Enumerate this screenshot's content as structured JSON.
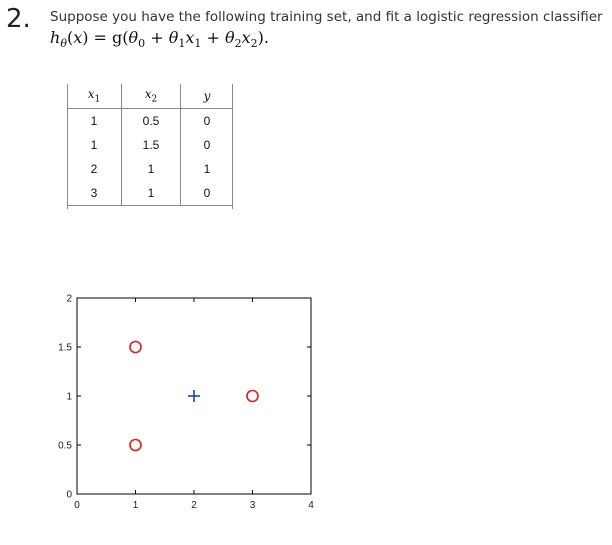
{
  "question": {
    "number": "2.",
    "intro": "Suppose you have the following training set, and fit a logistic regression classifier",
    "formula": {
      "h": "h",
      "theta": "θ",
      "x": "x",
      "eq": ") = g(",
      "theta0": "θ",
      "sub0": "0",
      "plus1": " + ",
      "theta1": "θ",
      "sub1": "1",
      "x1": "x",
      "subx1": "1",
      "plus2": " + ",
      "theta2": "θ",
      "sub2": "2",
      "x2": "x",
      "subx2": "2",
      "end": ")."
    }
  },
  "table": {
    "headers": {
      "x1": "x",
      "x1_sub": "1",
      "x2": "x",
      "x2_sub": "2",
      "y": "y"
    },
    "rows": [
      {
        "x1": "1",
        "x2": "0.5",
        "y": "0"
      },
      {
        "x1": "1",
        "x2": "1.5",
        "y": "0"
      },
      {
        "x1": "2",
        "x2": "1",
        "y": "1"
      },
      {
        "x1": "3",
        "x2": "1",
        "y": "0"
      }
    ]
  },
  "chart_data": {
    "type": "scatter",
    "xlim": [
      0,
      4
    ],
    "ylim": [
      0,
      2
    ],
    "xticks": [
      "0",
      "1",
      "2",
      "3",
      "4"
    ],
    "yticks": [
      "0",
      "0.5",
      "1",
      "1.5",
      "2"
    ],
    "grid": false,
    "series": [
      {
        "marker": "circle",
        "color": "#e41a1c",
        "points": [
          [
            1,
            0.5
          ],
          [
            1,
            1.5
          ],
          [
            3,
            1
          ]
        ]
      },
      {
        "marker": "plus",
        "color": "#1f3fc8",
        "points": [
          [
            2,
            1
          ]
        ]
      }
    ]
  }
}
